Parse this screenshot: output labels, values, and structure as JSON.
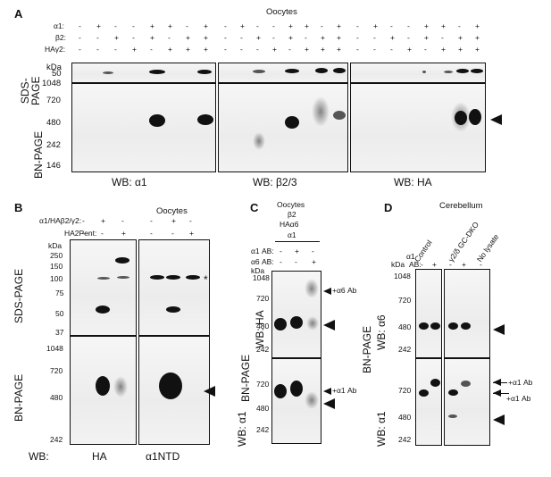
{
  "panelA": {
    "letter": "A",
    "title": "Oocytes",
    "row_labels": [
      "α1:",
      "β2:",
      "HAγ2:"
    ],
    "signs": [
      [
        "-",
        "+",
        "-",
        "-",
        "+",
        "+",
        "-",
        "+"
      ],
      [
        "-",
        "-",
        "+",
        "-",
        "+",
        "-",
        "+",
        "+"
      ],
      [
        "-",
        "-",
        "-",
        "+",
        "-",
        "+",
        "+",
        "+"
      ]
    ],
    "sds_label": "SDS-\nPAGE",
    "bn_label": "BN-PAGE",
    "kda": "kDa",
    "sds_markers": [
      "50"
    ],
    "bn_markers": [
      "1048",
      "720",
      "480",
      "242",
      "146"
    ],
    "wb_labels": [
      "WB: α1",
      "WB: β2/3",
      "WB: HA"
    ]
  },
  "panelB": {
    "letter": "B",
    "title": "Oocytes",
    "row_labels": [
      "α1/HAβ2/γ2:",
      "HA2Pent:"
    ],
    "signs": [
      [
        "-",
        "+",
        "-"
      ],
      [
        "-",
        "-",
        "+"
      ]
    ],
    "kda": "kDa",
    "sds_label": "SDS-PAGE",
    "bn_label": "BN-PAGE",
    "sds_markers": [
      "250",
      "150",
      "100",
      "75",
      "50",
      "37"
    ],
    "bn_markers": [
      "1048",
      "720",
      "480",
      "242"
    ],
    "wb_prefix": "WB:",
    "wb_labels": [
      "HA",
      "α1NTD"
    ],
    "asterisk": "*"
  },
  "panelC": {
    "letter": "C",
    "title_lines": [
      "Oocytes",
      "β2",
      "HAα6",
      "α1"
    ],
    "row_labels": [
      "α1 AB:",
      "α6 AB:"
    ],
    "signs": [
      [
        "-",
        "+",
        "-"
      ],
      [
        "-",
        "-",
        "+"
      ]
    ],
    "kda": "kDa",
    "top_markers": [
      "1048",
      "720",
      "480",
      "242"
    ],
    "bottom_markers": [
      "720",
      "480",
      "242"
    ],
    "bn_label": "BN-PAGE",
    "wb_top": "WB: HA",
    "wb_bottom": "WB: α1",
    "ann_top": "+α6 Ab",
    "ann_bottom": "+α1 Ab"
  },
  "panelD": {
    "letter": "D",
    "title": "Cerebellum",
    "col_labels": [
      "Control",
      "γ2/δ GC-DKO",
      "No lysate"
    ],
    "row_label_top": "α1",
    "row_label": "AB:",
    "signs": [
      "-",
      "+",
      "-",
      "+",
      "-"
    ],
    "kda": "kDa",
    "top_markers": [
      "1048",
      "720",
      "480",
      "242"
    ],
    "bottom_markers": [
      "720",
      "480",
      "242"
    ],
    "bn_label": "BN-PAGE",
    "wb_top": "WB: α6",
    "wb_bottom": "WB: α1",
    "ann1": "+α1 Ab",
    "ann2": "+α1 Ab"
  }
}
